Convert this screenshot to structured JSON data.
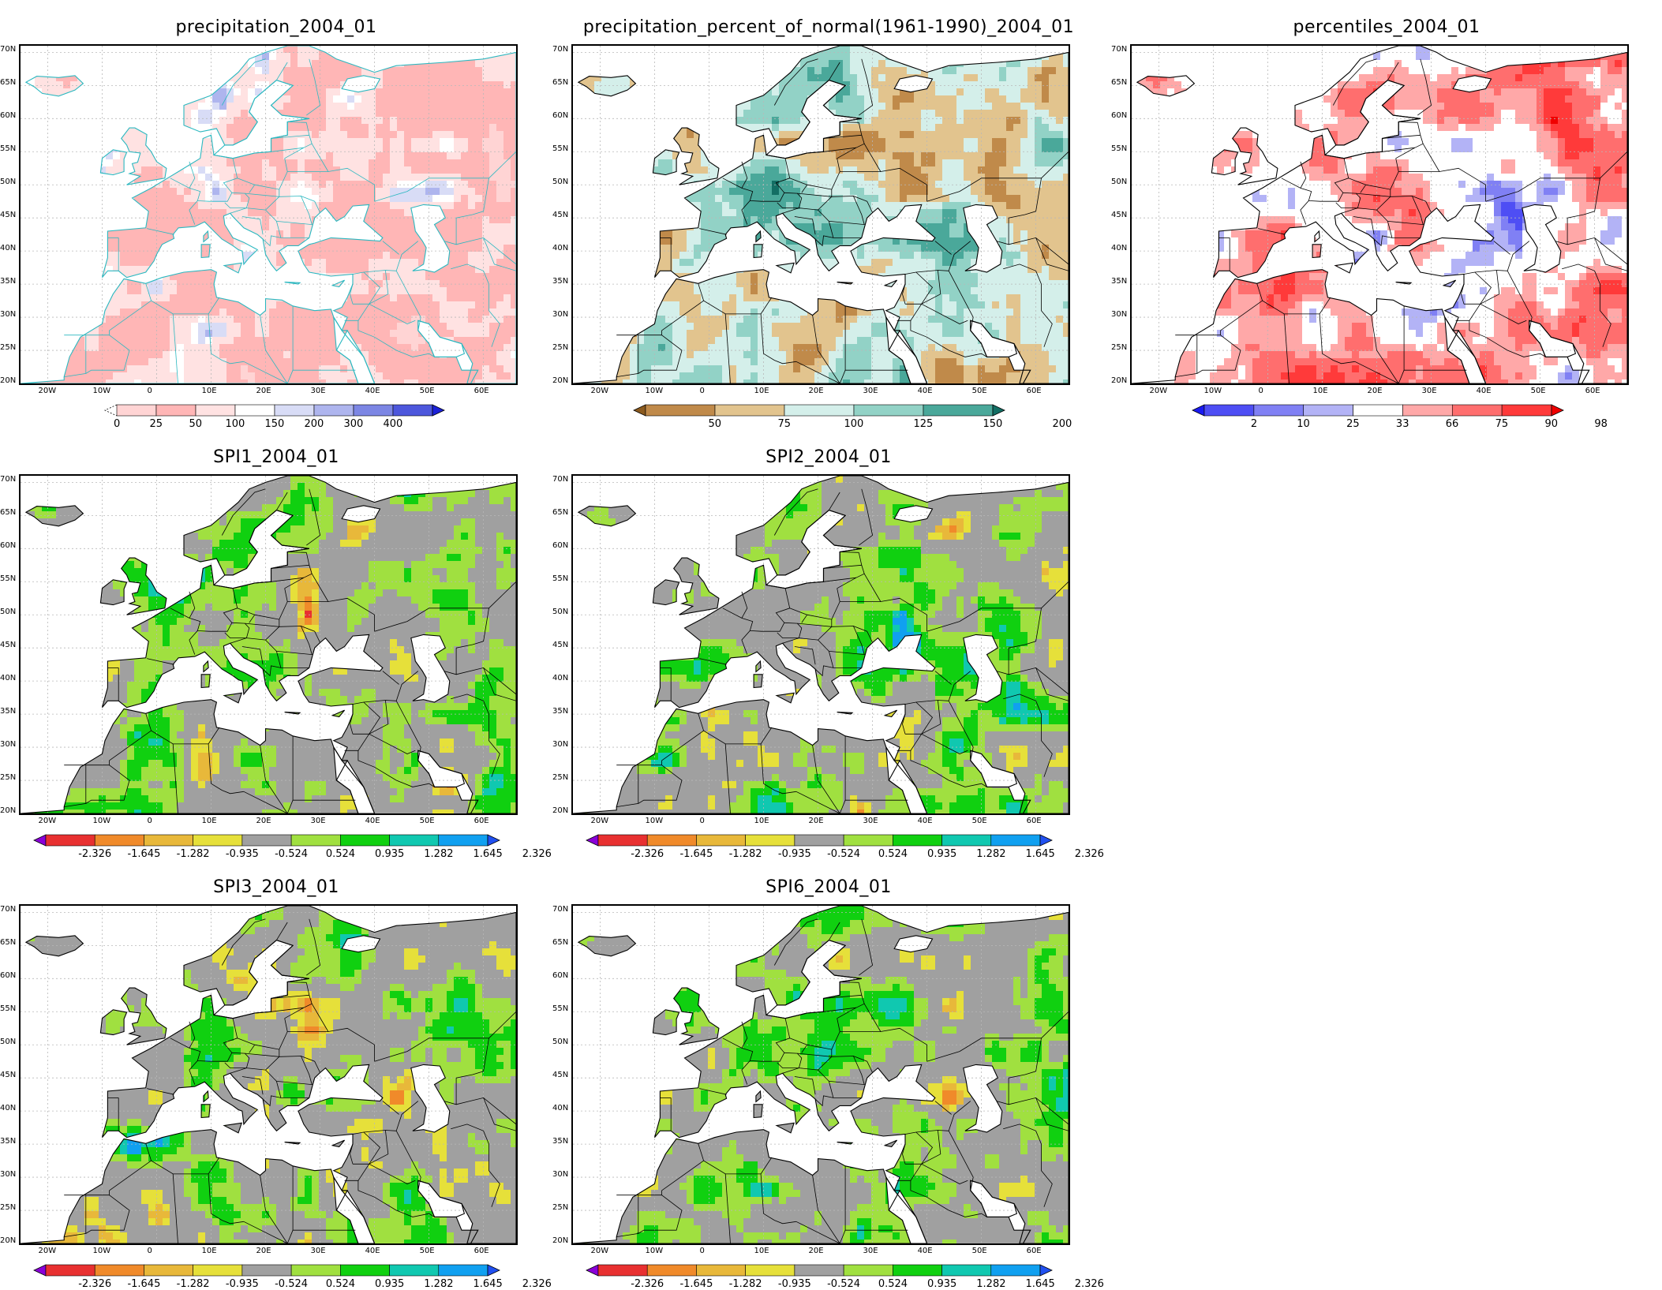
{
  "panels": [
    {
      "id": "p1",
      "title": "precipitation_2004_01",
      "scheme": "precip",
      "cb_colors": [
        "#ffd4d4",
        "#ffb6b6",
        "#ffe2e2",
        "#ffffff",
        "#d8dcf6",
        "#aeb5ee",
        "#7c86e4",
        "#4d57dc",
        "#1c22d8"
      ],
      "cb_labels": [
        "0",
        "25",
        "50",
        "100",
        "150",
        "200",
        "300",
        "400"
      ],
      "cb_left_tri": false,
      "cb_right_tri": true
    },
    {
      "id": "p2",
      "title": "precipitation_percent_of_normal(1961-1990)_2004_01",
      "scheme": "pct",
      "cb_colors": [
        "#8b5a1e",
        "#c08a4a",
        "#e2c48e",
        "#d4efea",
        "#92d2c6",
        "#4aa89a",
        "#136e64"
      ],
      "cb_labels": [
        "50",
        "75",
        "100",
        "125",
        "150",
        "200"
      ],
      "cb_left_tri": true,
      "cb_right_tri": true
    },
    {
      "id": "p3",
      "title": "percentiles_2004_01",
      "scheme": "perc",
      "cb_colors": [
        "#1a1af2",
        "#4e4ef4",
        "#8080f4",
        "#b3b3f6",
        "#ffffff",
        "#ffa8a8",
        "#ff6e6e",
        "#ff3a3a",
        "#f00000"
      ],
      "cb_labels": [
        "2",
        "10",
        "25",
        "33",
        "66",
        "75",
        "90",
        "98"
      ],
      "cb_left_tri": true,
      "cb_right_tri": true
    },
    {
      "id": "p4",
      "title": "SPI1_2004_01",
      "scheme": "spi",
      "cb_colors": [
        "#8a00d8",
        "#e83030",
        "#f08a2a",
        "#e8b83a",
        "#e6e03a",
        "#a0a0a0",
        "#a0e040",
        "#10d010",
        "#10c8b0",
        "#10a0f0",
        "#2050f0"
      ],
      "cb_labels": [
        "-2.326",
        "-1.645",
        "-1.282",
        "-0.935",
        "-0.524",
        "0.524",
        "0.935",
        "1.282",
        "1.645",
        "2.326"
      ],
      "cb_left_tri": true,
      "cb_right_tri": true
    },
    {
      "id": "p5",
      "title": "SPI2_2004_01",
      "scheme": "spi",
      "cb_colors": [
        "#8a00d8",
        "#e83030",
        "#f08a2a",
        "#e8b83a",
        "#e6e03a",
        "#a0a0a0",
        "#a0e040",
        "#10d010",
        "#10c8b0",
        "#10a0f0",
        "#2050f0"
      ],
      "cb_labels": [
        "-2.326",
        "-1.645",
        "-1.282",
        "-0.935",
        "-0.524",
        "0.524",
        "0.935",
        "1.282",
        "1.645",
        "2.326"
      ],
      "cb_left_tri": true,
      "cb_right_tri": true
    },
    {
      "id": "p6",
      "title": "SPI3_2004_01",
      "scheme": "spi",
      "cb_colors": [
        "#8a00d8",
        "#e83030",
        "#f08a2a",
        "#e8b83a",
        "#e6e03a",
        "#a0a0a0",
        "#a0e040",
        "#10d010",
        "#10c8b0",
        "#10a0f0",
        "#2050f0"
      ],
      "cb_labels": [
        "-2.326",
        "-1.645",
        "-1.282",
        "-0.935",
        "-0.524",
        "0.524",
        "0.935",
        "1.282",
        "1.645",
        "2.326"
      ],
      "cb_left_tri": true,
      "cb_right_tri": true
    },
    {
      "id": "p7",
      "title": "SPI6_2004_01",
      "scheme": "spi",
      "cb_colors": [
        "#8a00d8",
        "#e83030",
        "#f08a2a",
        "#e8b83a",
        "#e6e03a",
        "#a0a0a0",
        "#a0e040",
        "#10d010",
        "#10c8b0",
        "#10a0f0",
        "#2050f0"
      ],
      "cb_labels": [
        "-2.326",
        "-1.645",
        "-1.282",
        "-0.935",
        "-0.524",
        "0.524",
        "0.935",
        "1.282",
        "1.645",
        "2.326"
      ],
      "cb_left_tri": true,
      "cb_right_tri": true
    }
  ],
  "lat_labels": [
    "70N",
    "65N",
    "60N",
    "55N",
    "50N",
    "45N",
    "40N",
    "35N",
    "30N",
    "25N",
    "20N"
  ],
  "lon_labels": [
    "20W",
    "10W",
    "0",
    "10E",
    "20E",
    "30E",
    "40E",
    "50E",
    "60E"
  ],
  "lat_range": [
    20,
    71
  ],
  "lon_range": [
    -25,
    66
  ]
}
